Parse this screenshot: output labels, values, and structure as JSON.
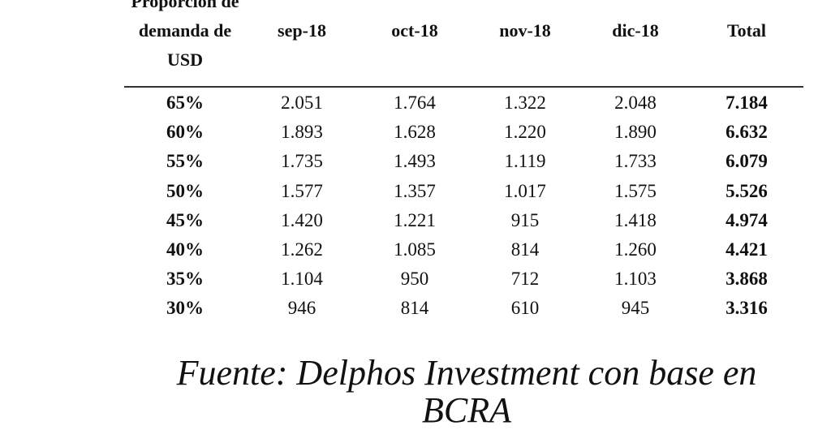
{
  "table": {
    "header": [
      "Proporción de demanda de USD",
      "sep-18",
      "oct-18",
      "nov-18",
      "dic-18",
      "Total"
    ],
    "rows": [
      [
        "65%",
        "2.051",
        "1.764",
        "1.322",
        "2.048",
        "7.184"
      ],
      [
        "60%",
        "1.893",
        "1.628",
        "1.220",
        "1.890",
        "6.632"
      ],
      [
        "55%",
        "1.735",
        "1.493",
        "1.119",
        "1.733",
        "6.079"
      ],
      [
        "50%",
        "1.577",
        "1.357",
        "1.017",
        "1.575",
        "5.526"
      ],
      [
        "45%",
        "1.420",
        "1.221",
        "915",
        "1.418",
        "4.974"
      ],
      [
        "40%",
        "1.262",
        "1.085",
        "814",
        "1.260",
        "4.421"
      ],
      [
        "35%",
        "1.104",
        "950",
        "712",
        "1.103",
        "3.868"
      ],
      [
        "30%",
        "946",
        "814",
        "610",
        "945",
        "3.316"
      ]
    ]
  },
  "source": "Fuente: Delphos Investment con base en BCRA"
}
